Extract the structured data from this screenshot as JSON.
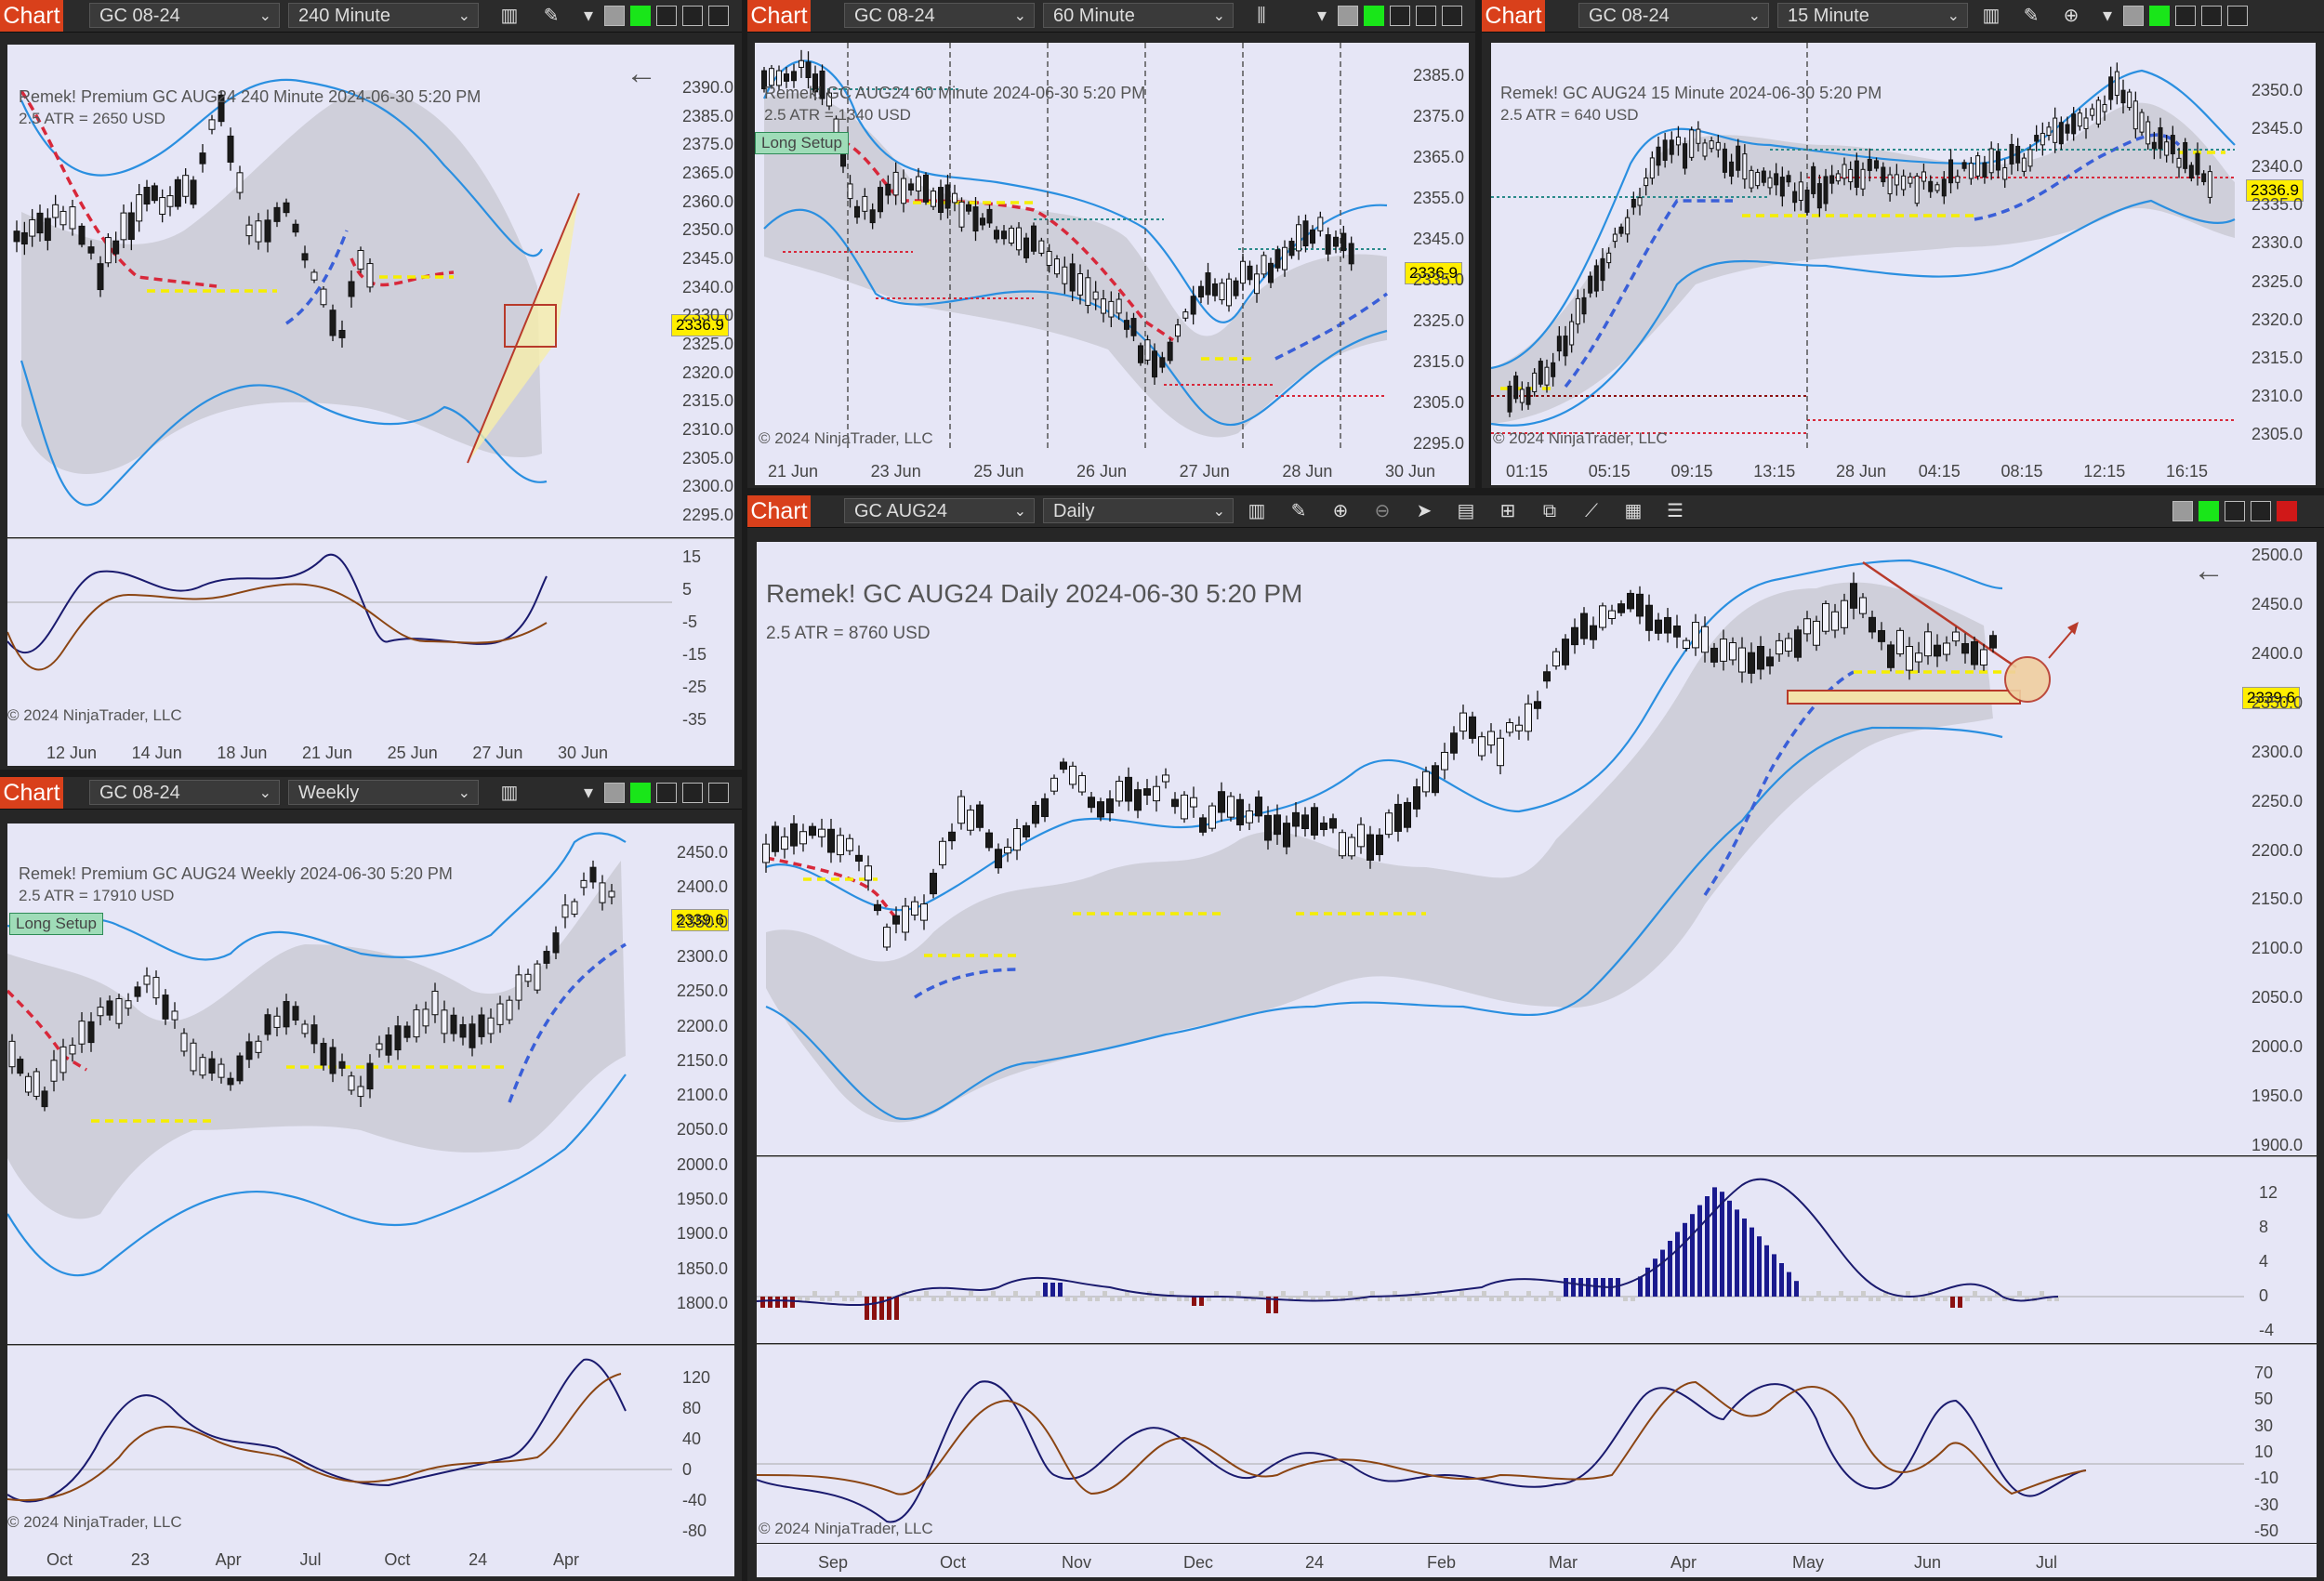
{
  "colors": {
    "accent": "#d9401b",
    "panel": "#e6e6f6",
    "up": "#e6e6f6",
    "down": "#1a1a1a",
    "upper_band": "#2a8fe0",
    "red_trail": "#d8283a",
    "blue_trail": "#3a5fd8",
    "yellow": "#f5ee00"
  },
  "top_left": {
    "chart_label": "Chart",
    "symbol": "GC 08-24",
    "interval": "240 Minute",
    "title_line": "Remek!  Premium  GC AUG24  240 Minute  2024-06-30 5:20 PM",
    "atr": "2.5 ATR = 2650 USD",
    "price_badge": "2336.9",
    "copyright": "© 2024 NinjaTrader, LLC",
    "price_axis": [
      "2390.0",
      "2385.0",
      "2375.0",
      "2365.0",
      "2360.0",
      "2350.0",
      "2345.0",
      "2340.0",
      "2330.0",
      "2325.0",
      "2320.0",
      "2315.0",
      "2310.0",
      "2305.0",
      "2300.0",
      "2295.0"
    ],
    "osc_axis": [
      "15",
      "5",
      "-5",
      "-15",
      "-25",
      "-35"
    ],
    "time_axis": [
      "12 Jun",
      "14 Jun",
      "18 Jun",
      "21 Jun",
      "25 Jun",
      "27 Jun",
      "30 Jun"
    ]
  },
  "top_mid": {
    "chart_label": "Chart",
    "symbol": "GC 08-24",
    "interval": "60 Minute",
    "title_line": "Remek!  GC AUG24  60 Minute  2024-06-30 5:20 PM",
    "atr": "2.5 ATR = 1340 USD",
    "setup": "Long Setup",
    "price_badge": "2336.9",
    "copyright": "© 2024 NinjaTrader, LLC",
    "price_axis": [
      "2385.0",
      "2375.0",
      "2365.0",
      "2355.0",
      "2345.0",
      "2335.0",
      "2325.0",
      "2315.0",
      "2305.0",
      "2295.0"
    ],
    "time_axis": [
      "21 Jun",
      "23 Jun",
      "25 Jun",
      "26 Jun",
      "27 Jun",
      "28 Jun",
      "30 Jun"
    ]
  },
  "top_right": {
    "chart_label": "Chart",
    "symbol": "GC 08-24",
    "interval": "15 Minute",
    "title_line": "Remek!  GC AUG24  15 Minute  2024-06-30 5:20 PM",
    "atr": "2.5 ATR = 640 USD",
    "price_badge": "2336.9",
    "copyright": "© 2024 NinjaTrader, LLC",
    "price_axis": [
      "2350.0",
      "2345.0",
      "2340.0",
      "2335.0",
      "2330.0",
      "2325.0",
      "2320.0",
      "2315.0",
      "2310.0",
      "2305.0"
    ],
    "time_axis": [
      "01:15",
      "05:15",
      "09:15",
      "13:15",
      "28 Jun",
      "04:15",
      "08:15",
      "12:15",
      "16:15"
    ]
  },
  "bottom_left": {
    "chart_label": "Chart",
    "symbol": "GC 08-24",
    "interval": "Weekly",
    "title_line": "Remek!  Premium  GC AUG24  Weekly  2024-06-30 5:20 PM",
    "atr": "2.5 ATR = 17910 USD",
    "setup": "Long Setup",
    "price_badge": "2339.6",
    "copyright": "© 2024 NinjaTrader, LLC",
    "price_axis": [
      "2450.0",
      "2400.0",
      "2350.0",
      "2300.0",
      "2250.0",
      "2200.0",
      "2150.0",
      "2100.0",
      "2050.0",
      "2000.0",
      "1950.0",
      "1900.0",
      "1850.0",
      "1800.0"
    ],
    "osc_axis": [
      "120",
      "80",
      "40",
      "0",
      "-40",
      "-80"
    ],
    "time_axis": [
      "Oct",
      "23",
      "Apr",
      "Jul",
      "Oct",
      "24",
      "Apr"
    ]
  },
  "main": {
    "chart_label": "Chart",
    "symbol": "GC AUG24",
    "interval": "Daily",
    "title_line": "Remek!  GC AUG24  Daily  2024-06-30 5:20 PM",
    "atr": "2.5 ATR = 8760 USD",
    "price_badge": "2339.6",
    "copyright": "© 2024 NinjaTrader, LLC",
    "price_axis": [
      "2500.0",
      "2450.0",
      "2400.0",
      "2350.0",
      "2300.0",
      "2250.0",
      "2200.0",
      "2150.0",
      "2100.0",
      "2050.0",
      "2000.0",
      "1950.0",
      "1900.0"
    ],
    "hist_axis": [
      "12",
      "8",
      "4",
      "0",
      "-4"
    ],
    "osc_axis": [
      "70",
      "50",
      "30",
      "10",
      "-10",
      "-30",
      "-50"
    ],
    "time_axis": [
      "Sep",
      "Oct",
      "Nov",
      "Dec",
      "24",
      "Feb",
      "Mar",
      "Apr",
      "May",
      "Jun",
      "Jul"
    ]
  }
}
